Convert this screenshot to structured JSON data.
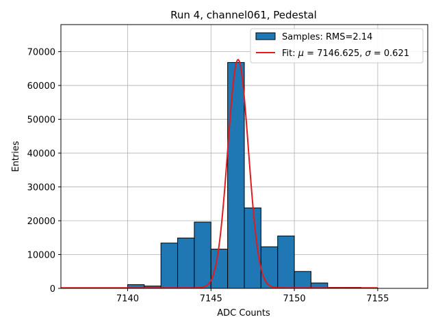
{
  "chart_data": {
    "type": "bar",
    "title": "Run 4, channel061, Pedestal",
    "xlabel": "ADC Counts",
    "ylabel": "Entries",
    "xlim": [
      7136,
      7158
    ],
    "ylim": [
      0,
      78000
    ],
    "xticks": [
      7140,
      7145,
      7150,
      7155
    ],
    "yticks": [
      0,
      10000,
      20000,
      30000,
      40000,
      50000,
      60000,
      70000
    ],
    "grid": true,
    "legend_position": "top-right",
    "bar_color": "#1f77b4",
    "fit_color": "#e31a1c",
    "histogram": {
      "name": "Samples: RMS=2.14",
      "bin_edges": [
        7140,
        7141,
        7142,
        7143,
        7144,
        7145,
        7146,
        7147,
        7148,
        7149,
        7150,
        7151,
        7152,
        7153,
        7154,
        7155
      ],
      "counts": [
        1100,
        700,
        13400,
        14900,
        19600,
        11600,
        66800,
        23800,
        12300,
        15500,
        5000,
        1600,
        300,
        300,
        100
      ]
    },
    "fit": {
      "label_prefix": "Fit: ",
      "label_mu_symbol": "μ",
      "label_mid": " = 7146.625, ",
      "label_sigma_symbol": "σ",
      "label_suffix": " = 0.621",
      "mu": 7146.625,
      "sigma": 0.621,
      "amplitude": 67500,
      "x_range": [
        7136,
        7155
      ],
      "baseline": 150
    }
  }
}
